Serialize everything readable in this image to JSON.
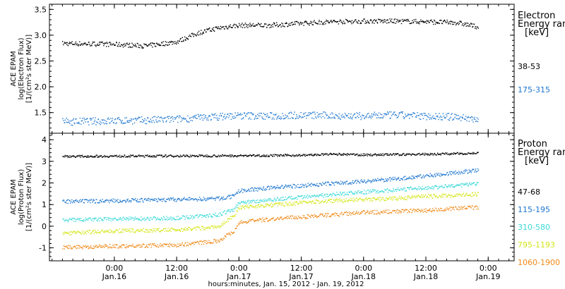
{
  "chart_data": [
    {
      "type": "scatter",
      "panel": "electron",
      "ylabel": [
        "ACE EPAM",
        "log(Electron Flux)",
        "[1/(cm²s ster MeV)]"
      ],
      "ylim": [
        1.1,
        3.6
      ],
      "yticks": [
        "1.5",
        "2.0",
        "2.5",
        "3.0",
        "3.5"
      ],
      "ytick_values": [
        1.5,
        2.0,
        2.5,
        3.0,
        3.5
      ],
      "legend_title": [
        "Electron",
        "Energy ran",
        "[keV]"
      ],
      "legend_placement": "right",
      "series": [
        {
          "name": "38-53",
          "color": "#000000",
          "x": [
            -10,
            0,
            6,
            12,
            16,
            20,
            24,
            30,
            36,
            42,
            48,
            54,
            60,
            66,
            70
          ],
          "y": [
            2.85,
            2.83,
            2.8,
            2.88,
            3.05,
            3.15,
            3.2,
            3.2,
            3.24,
            3.27,
            3.28,
            3.28,
            3.27,
            3.25,
            3.17
          ]
        },
        {
          "name": "175-315",
          "color": "#1f77d0",
          "x": [
            -10,
            0,
            6,
            12,
            18,
            24,
            30,
            36,
            42,
            48,
            54,
            60,
            66,
            70
          ],
          "y": [
            1.33,
            1.35,
            1.36,
            1.38,
            1.42,
            1.45,
            1.44,
            1.46,
            1.45,
            1.44,
            1.46,
            1.44,
            1.42,
            1.38
          ]
        }
      ]
    },
    {
      "type": "scatter",
      "panel": "proton",
      "ylabel": [
        "ACE EPAM",
        "log(Proton Flux)",
        "[1/(cm²s ster MeV)]"
      ],
      "ylim": [
        -1.6,
        4.3
      ],
      "yticks": [
        "-1",
        "0",
        "1",
        "2",
        "3",
        "4"
      ],
      "ytick_values": [
        -1,
        0,
        1,
        2,
        3,
        4
      ],
      "legend_title": [
        "Proton",
        "Energy ran",
        "[keV]"
      ],
      "legend_placement": "right",
      "series": [
        {
          "name": "47-68",
          "color": "#000000",
          "x": [
            -10,
            0,
            12,
            24,
            36,
            42,
            48,
            60,
            70
          ],
          "y": [
            3.25,
            3.26,
            3.27,
            3.28,
            3.3,
            3.35,
            3.32,
            3.35,
            3.4
          ]
        },
        {
          "name": "115-195",
          "color": "#1f77d0",
          "x": [
            -10,
            0,
            12,
            20,
            23,
            24,
            30,
            36,
            42,
            48,
            54,
            60,
            66,
            70
          ],
          "y": [
            1.15,
            1.2,
            1.25,
            1.3,
            1.4,
            1.65,
            1.8,
            1.9,
            2.0,
            2.1,
            2.2,
            2.35,
            2.5,
            2.6
          ]
        },
        {
          "name": "310-580",
          "color": "#3fd9d9",
          "x": [
            -10,
            0,
            12,
            20,
            23,
            24,
            30,
            36,
            42,
            48,
            54,
            60,
            66,
            70
          ],
          "y": [
            0.3,
            0.35,
            0.4,
            0.55,
            0.8,
            1.1,
            1.25,
            1.35,
            1.5,
            1.6,
            1.7,
            1.8,
            1.9,
            2.0
          ]
        },
        {
          "name": "795-1193",
          "color": "#d4e61a",
          "x": [
            -10,
            0,
            12,
            20,
            23,
            24,
            30,
            36,
            42,
            48,
            54,
            60,
            66,
            70
          ],
          "y": [
            -0.3,
            -0.2,
            -0.15,
            0.0,
            0.5,
            0.9,
            1.0,
            1.1,
            1.2,
            1.25,
            1.3,
            1.4,
            1.45,
            1.5
          ]
        },
        {
          "name": "1060-1900",
          "color": "#f08a1a",
          "x": [
            -10,
            0,
            12,
            20,
            23,
            24,
            30,
            36,
            42,
            48,
            54,
            60,
            66,
            70
          ],
          "y": [
            -0.95,
            -0.9,
            -0.85,
            -0.65,
            -0.2,
            0.2,
            0.35,
            0.45,
            0.55,
            0.65,
            0.7,
            0.75,
            0.85,
            0.9
          ]
        }
      ]
    }
  ],
  "x_axis": {
    "tick_labels": [
      "0:00",
      "12:00",
      "0:00",
      "12:00",
      "0:00",
      "12:00",
      "0:00"
    ],
    "date_labels": [
      "Jan.16",
      "Jan.16",
      "Jan.17",
      "Jan.17",
      "Jan.18",
      "Jan.18",
      "Jan.19"
    ],
    "tick_values": [
      0,
      12,
      24,
      36,
      48,
      60,
      72
    ],
    "xlim": [
      -12.5,
      77
    ],
    "xlabel": "hours:minutes, Jan. 15, 2012 - Jan. 19, 2012"
  }
}
